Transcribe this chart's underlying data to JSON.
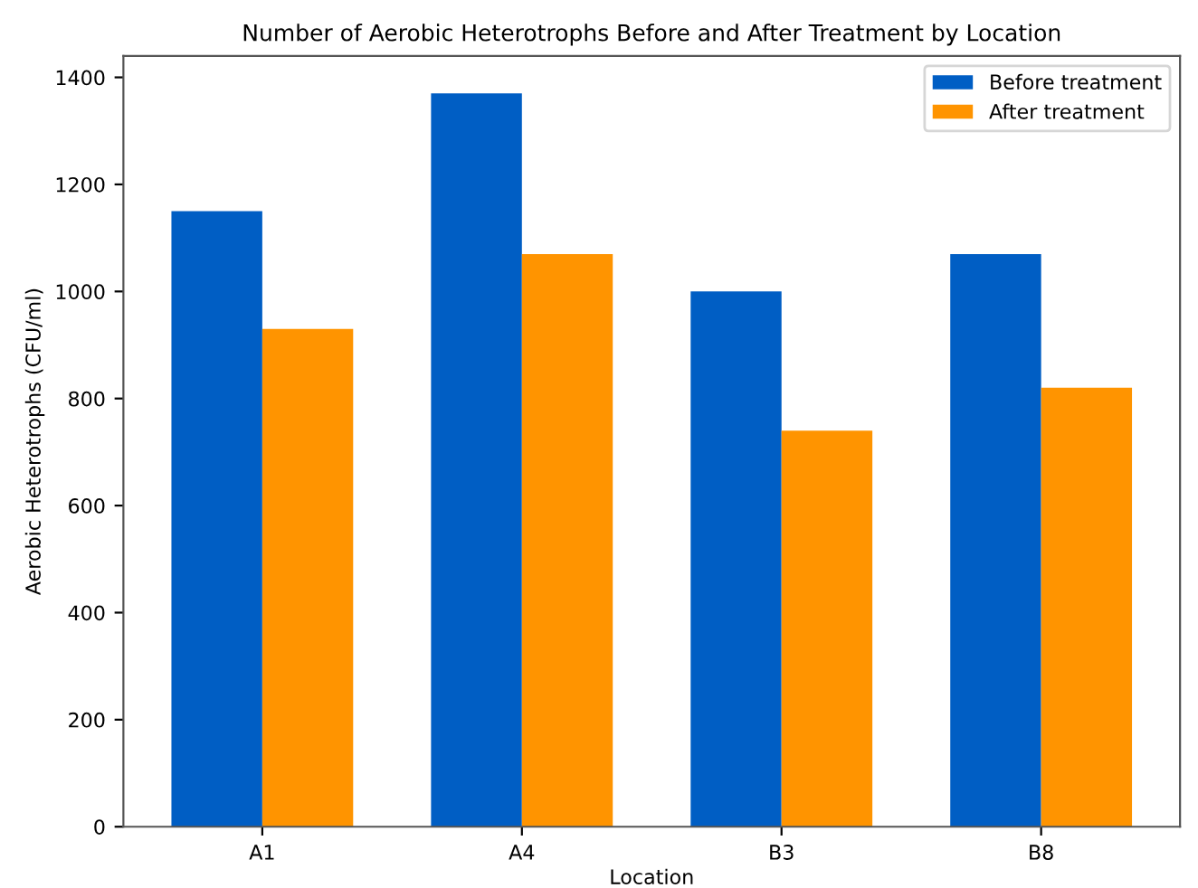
{
  "chart_data": {
    "type": "bar",
    "title": "Number of Aerobic Heterotrophs Before and After Treatment by Location",
    "xlabel": "Location",
    "ylabel": "Aerobic Heterotrophs (CFU/ml)",
    "categories": [
      "A1",
      "A4",
      "B3",
      "B8"
    ],
    "series": [
      {
        "name": "Before treatment",
        "color": "#005ec4",
        "values": [
          1150,
          1370,
          1000,
          1070
        ]
      },
      {
        "name": "After treatment",
        "color": "#ff9400",
        "values": [
          930,
          1070,
          740,
          820
        ]
      }
    ],
    "ylim": [
      0,
      1440
    ],
    "yticks": [
      0,
      200,
      400,
      600,
      800,
      1000,
      1200,
      1400
    ],
    "grid": false,
    "legend": "top right"
  }
}
